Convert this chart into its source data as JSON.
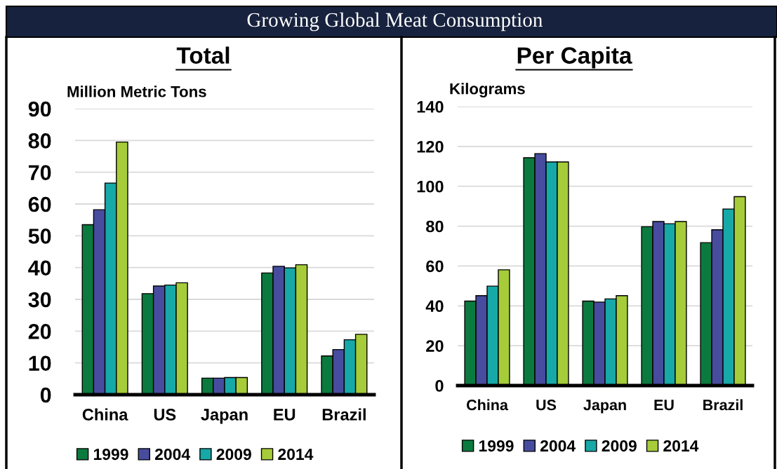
{
  "chart_data": [
    {
      "type": "bar",
      "title": "Growing Global Meat Consumption",
      "subtitle": "Total",
      "ylabel": "Million Metric Tons",
      "categories": [
        "China",
        "US",
        "Japan",
        "EU",
        "Brazil"
      ],
      "series": [
        {
          "name": "1999",
          "color": "#0b7a3e",
          "values": [
            53.5,
            31.8,
            5.2,
            38.3,
            12.2
          ]
        },
        {
          "name": "2004",
          "color": "#474c9e",
          "values": [
            58.2,
            34.2,
            5.2,
            40.4,
            14.2
          ]
        },
        {
          "name": "2009",
          "color": "#17a8a8",
          "values": [
            66.6,
            34.5,
            5.4,
            39.9,
            17.3
          ]
        },
        {
          "name": "2014",
          "color": "#a6cc3a",
          "values": [
            79.5,
            35.2,
            5.4,
            40.9,
            19.0
          ]
        }
      ],
      "ylim": [
        0,
        90
      ],
      "yticks": [
        0,
        10,
        20,
        30,
        40,
        50,
        60,
        70,
        80,
        90
      ],
      "grid": "y",
      "legend": "bottom"
    },
    {
      "type": "bar",
      "title": "Per Capita",
      "ylabel": "Kilograms",
      "categories": [
        "China",
        "US",
        "Japan",
        "EU",
        "Brazil"
      ],
      "series": [
        {
          "name": "1999",
          "color": "#0b7a3e",
          "values": [
            42.4,
            114.3,
            42.4,
            79.7,
            71.7
          ]
        },
        {
          "name": "2004",
          "color": "#474c9e",
          "values": [
            45.1,
            116.4,
            41.9,
            82.3,
            78.2
          ]
        },
        {
          "name": "2009",
          "color": "#17a8a8",
          "values": [
            49.9,
            112.2,
            43.5,
            81.2,
            88.6
          ]
        },
        {
          "name": "2014",
          "color": "#a6cc3a",
          "values": [
            58.1,
            112.2,
            45.1,
            82.3,
            94.8
          ]
        }
      ],
      "ylim": [
        0,
        140
      ],
      "yticks": [
        0,
        20,
        40,
        60,
        80,
        100,
        120,
        140
      ],
      "grid": "y",
      "legend": "bottom"
    }
  ]
}
